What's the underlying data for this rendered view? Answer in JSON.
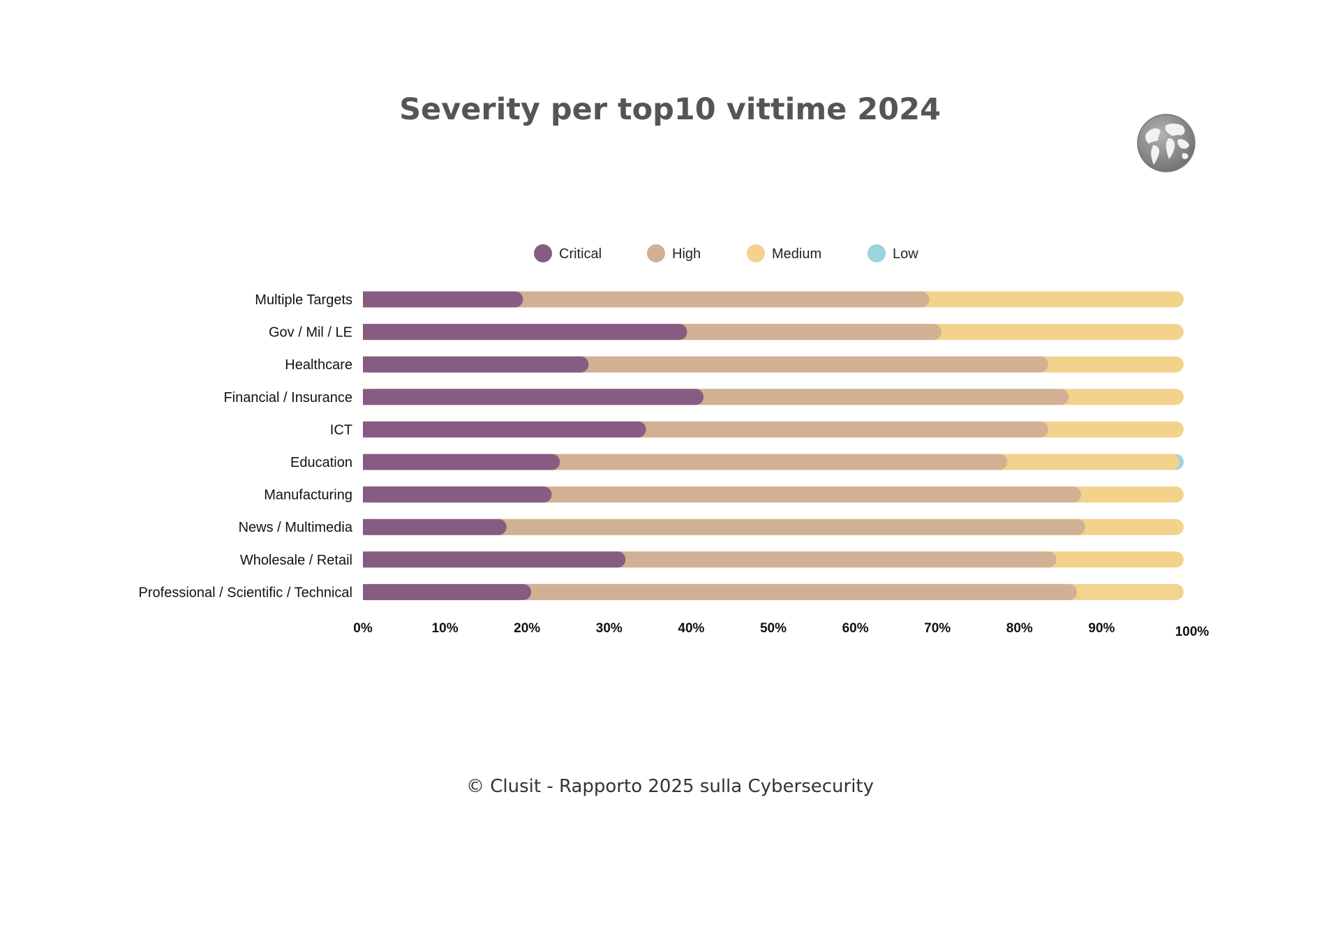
{
  "chart_data": {
    "type": "bar",
    "orientation": "horizontal",
    "stacked": true,
    "title": "Severity per top10 vittime 2024",
    "categories": [
      "Multiple Targets",
      "Gov / Mil / LE",
      "Healthcare",
      "Financial / Insurance",
      "ICT",
      "Education",
      "Manufacturing",
      "News / Multimedia",
      "Wholesale / Retail",
      "Professional / Scientific / Technical"
    ],
    "series": [
      {
        "name": "Critical",
        "color": "#875C82",
        "values": [
          19.5,
          39.5,
          27.5,
          41.5,
          34.5,
          24.0,
          23.0,
          17.5,
          32.0,
          20.5
        ]
      },
      {
        "name": "High",
        "color": "#D2B094",
        "values": [
          49.5,
          31.0,
          56.0,
          44.5,
          49.0,
          54.5,
          64.5,
          70.5,
          52.5,
          66.5
        ]
      },
      {
        "name": "Medium",
        "color": "#F3D28C",
        "values": [
          31.0,
          29.5,
          16.5,
          14.0,
          16.5,
          21.0,
          12.5,
          12.0,
          15.5,
          13.0
        ]
      },
      {
        "name": "Low",
        "color": "#9CD3DC",
        "values": [
          0.0,
          0.0,
          0.0,
          0.0,
          0.0,
          0.5,
          0.0,
          0.0,
          0.0,
          0.0
        ]
      }
    ],
    "xlim": [
      0,
      100
    ],
    "xticks": [
      "0%",
      "10%",
      "20%",
      "30%",
      "40%",
      "50%",
      "60%",
      "70%",
      "80%",
      "90%",
      "100%"
    ],
    "legend_position": "top",
    "grid": false
  },
  "footer": "© Clusit - Rapporto 2025 sulla Cybersecurity",
  "icons": {
    "logo": "globe-icon"
  }
}
